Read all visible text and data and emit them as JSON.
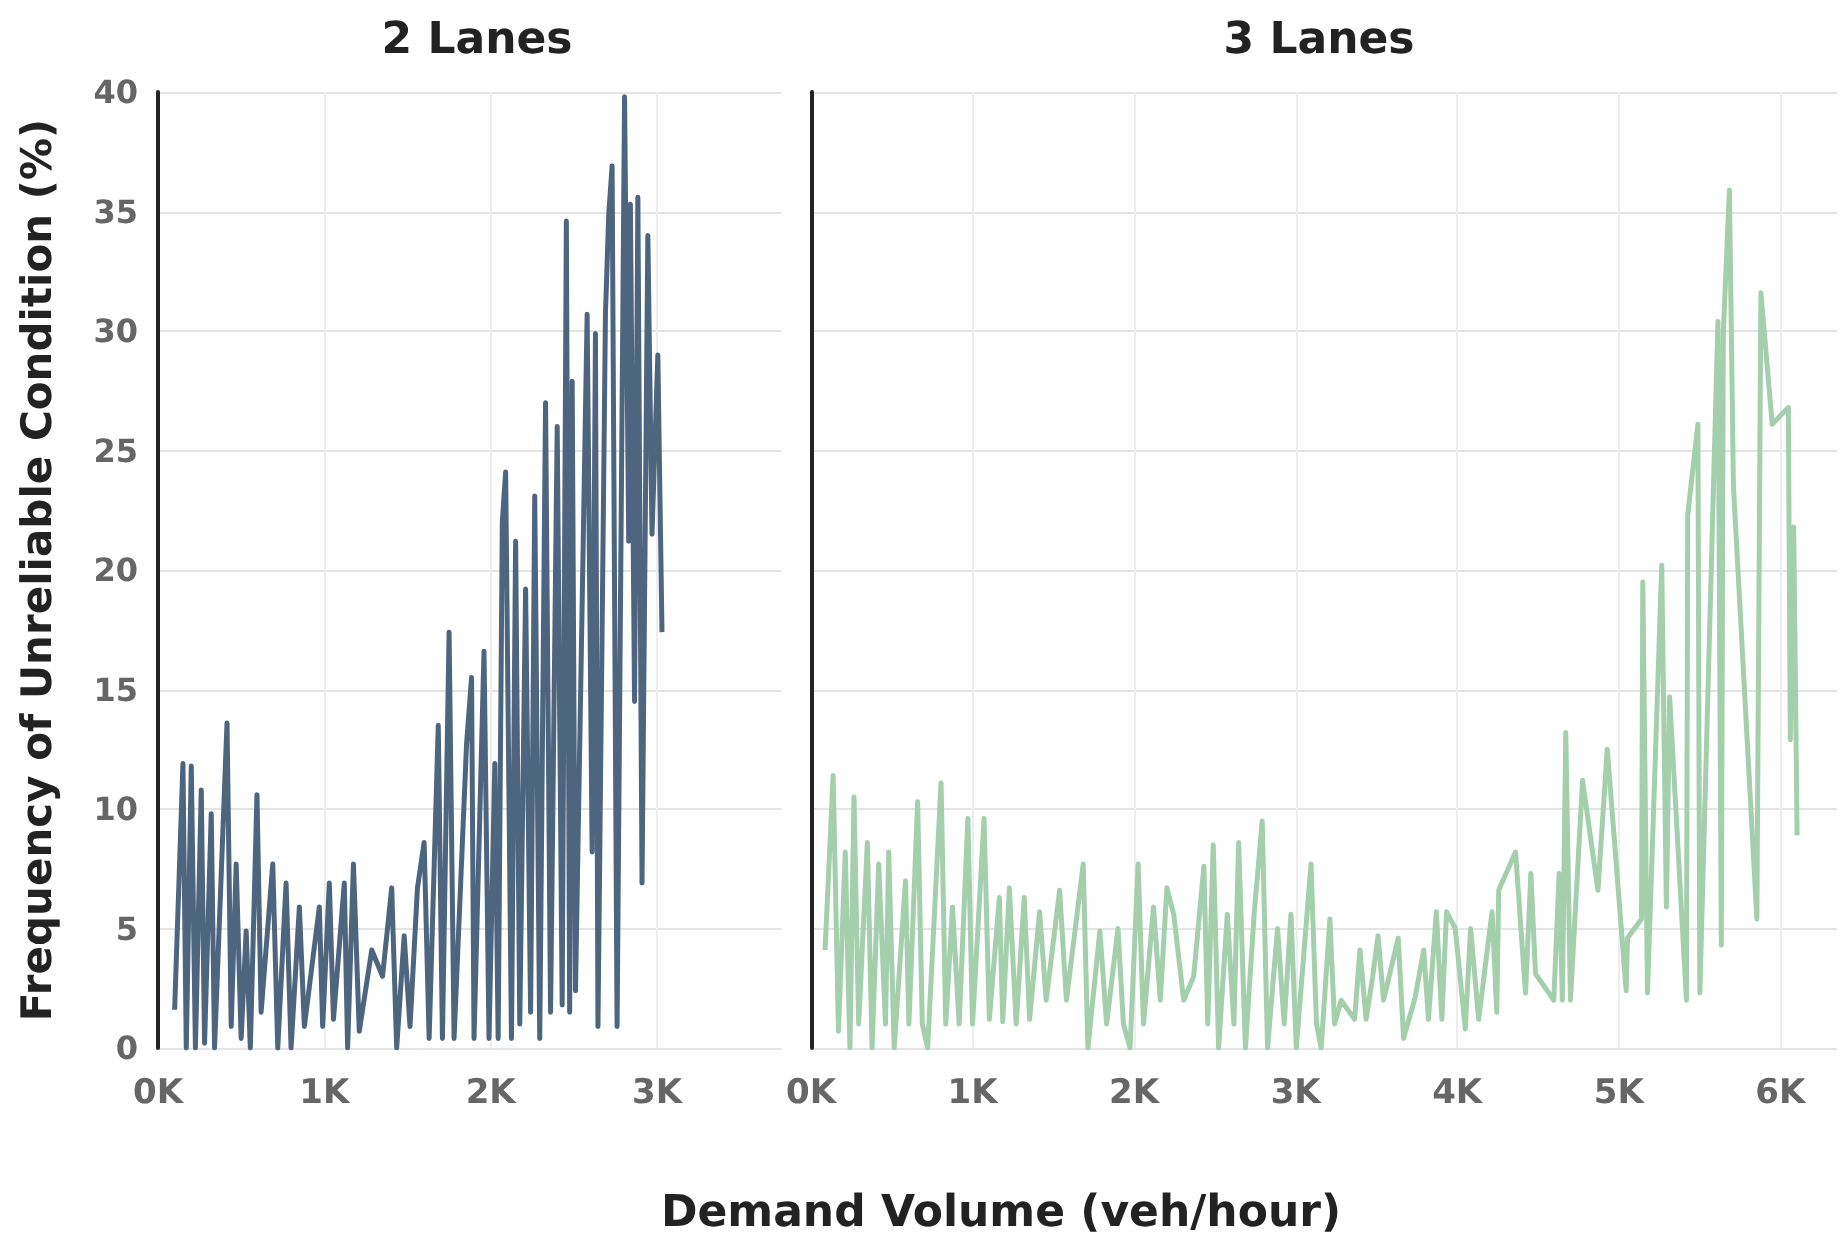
{
  "chart_data": [
    {
      "type": "line",
      "title": "2 Lanes",
      "ylabel": "Frequency of Unreliable Condition (%)",
      "xlabel": "Demand Volume (veh/hour)",
      "grid": true,
      "marker": "none",
      "line_style": "solid",
      "xlim": [
        0,
        3750
      ],
      "xticks": [
        {
          "value": 0,
          "label": "0K"
        },
        {
          "value": 1000,
          "label": "1K"
        },
        {
          "value": 2000,
          "label": "2K"
        },
        {
          "value": 3000,
          "label": "3K"
        }
      ],
      "ylim": [
        0,
        40
      ],
      "yticks": [
        0,
        5,
        10,
        15,
        20,
        25,
        30,
        35,
        40
      ],
      "series": [
        {
          "color": "#4e6580",
          "x": [
            100,
            150,
            170,
            200,
            225,
            260,
            280,
            320,
            340,
            415,
            440,
            470,
            500,
            530,
            555,
            595,
            620,
            690,
            720,
            770,
            800,
            850,
            880,
            970,
            990,
            1030,
            1055,
            1120,
            1140,
            1175,
            1210,
            1285,
            1350,
            1405,
            1435,
            1480,
            1515,
            1560,
            1600,
            1630,
            1685,
            1710,
            1750,
            1780,
            1855,
            1885,
            1900,
            1960,
            1990,
            2025,
            2045,
            2070,
            2090,
            2125,
            2150,
            2175,
            2210,
            2240,
            2265,
            2295,
            2330,
            2360,
            2400,
            2430,
            2455,
            2475,
            2490,
            2510,
            2580,
            2610,
            2630,
            2645,
            2690,
            2710,
            2730,
            2760,
            2805,
            2830,
            2840,
            2865,
            2885,
            2910,
            2945,
            2970,
            3005,
            3030
          ],
          "values": [
            1.6,
            11.9,
            0,
            11.8,
            0,
            10.8,
            0.2,
            9.8,
            0,
            13.6,
            0.9,
            7.7,
            0.4,
            4.9,
            0,
            10.6,
            1.5,
            7.7,
            0,
            6.9,
            0,
            5.9,
            0.9,
            5.9,
            0.9,
            6.9,
            1.2,
            6.9,
            0,
            7.7,
            0.7,
            4.1,
            3.0,
            6.7,
            0,
            4.7,
            0.9,
            6.7,
            8.6,
            0.4,
            13.5,
            0.4,
            17.4,
            0.4,
            12.7,
            15.5,
            0.4,
            16.6,
            0.4,
            11.9,
            0.4,
            22,
            24.1,
            0.4,
            21.2,
            1.0,
            19.2,
            1.5,
            23.1,
            0.4,
            27,
            1.5,
            26,
            1.8,
            34.6,
            1.5,
            27.9,
            2.4,
            30.7,
            8.2,
            29.9,
            0.9,
            30.7,
            34.9,
            36.9,
            0.9,
            39.8,
            21.2,
            35.3,
            14.5,
            35.6,
            6.9,
            34,
            21.5,
            29,
            17.4
          ]
        }
      ]
    },
    {
      "type": "line",
      "title": "3 Lanes",
      "grid": true,
      "marker": "none",
      "line_style": "solid",
      "tick_labels": "x",
      "xlim": [
        0,
        6350
      ],
      "xticks": [
        {
          "value": 0,
          "label": "0K"
        },
        {
          "value": 1000,
          "label": "1K"
        },
        {
          "value": 2000,
          "label": "2K"
        },
        {
          "value": 3000,
          "label": "3K"
        },
        {
          "value": 4000,
          "label": "4K"
        },
        {
          "value": 5000,
          "label": "5K"
        },
        {
          "value": 6000,
          "label": "6K"
        }
      ],
      "ylim": [
        0,
        40
      ],
      "yticks": [
        0,
        5,
        10,
        15,
        20,
        25,
        30,
        35,
        40
      ],
      "series": [
        {
          "color": "#a3cfad",
          "x": [
            87,
            137,
            170,
            212,
            241,
            266,
            295,
            349,
            378,
            419,
            461,
            481,
            515,
            585,
            606,
            660,
            689,
            722,
            805,
            834,
            876,
            917,
            971,
            1000,
            1071,
            1104,
            1166,
            1187,
            1228,
            1270,
            1320,
            1353,
            1415,
            1456,
            1539,
            1581,
            1685,
            1714,
            1788,
            1830,
            1900,
            1934,
            1975,
            2025,
            2058,
            2120,
            2162,
            2203,
            2245,
            2307,
            2369,
            2432,
            2456,
            2490,
            2523,
            2577,
            2618,
            2647,
            2689,
            2743,
            2793,
            2826,
            2888,
            2929,
            2971,
            3004,
            3095,
            3129,
            3158,
            3212,
            3241,
            3282,
            3365,
            3398,
            3436,
            3477,
            3510,
            3544,
            3635,
            3668,
            3739,
            3793,
            3822,
            3871,
            3905,
            3934,
            3988,
            4050,
            4083,
            4133,
            4216,
            4245,
            4257,
            4361,
            4423,
            4456,
            4485,
            4598,
            4631,
            4651,
            4672,
            4701,
            4776,
            4871,
            4929,
            5046,
            5054,
            5141,
            5149,
            5178,
            5266,
            5295,
            5315,
            5419,
            5427,
            5490,
            5502,
            5614,
            5635,
            5647,
            5685,
            5710,
            5855,
            5880,
            5950,
            6050,
            6062,
            6083,
            6104
          ],
          "values": [
            4.1,
            11.4,
            0.7,
            8.2,
            0,
            10.5,
            1,
            8.6,
            0,
            7.7,
            1,
            8.2,
            0,
            7,
            1,
            10.3,
            1,
            0,
            11.1,
            1,
            5.9,
            1,
            9.6,
            1,
            9.6,
            1.2,
            6.3,
            1.1,
            6.7,
            1,
            6.3,
            1.2,
            5.7,
            2,
            6.6,
            2,
            7.7,
            0,
            4.9,
            1,
            5,
            1,
            0,
            7.7,
            1,
            5.9,
            2,
            6.7,
            5.6,
            2,
            3,
            7.6,
            1,
            8.5,
            0,
            5.6,
            1,
            8.6,
            0,
            5.6,
            9.5,
            0,
            5,
            1,
            5.6,
            0,
            7.7,
            1,
            0,
            5.4,
            1,
            2,
            1.2,
            4.1,
            1.2,
            3,
            4.7,
            2,
            4.6,
            0.4,
            2.1,
            4.1,
            1.2,
            5.7,
            1.2,
            5.7,
            5,
            0.8,
            5,
            1.2,
            5.7,
            1.5,
            6.6,
            8.2,
            2.3,
            7.3,
            3.1,
            2,
            7.3,
            2,
            13.2,
            2,
            11.2,
            6.6,
            12.5,
            2.4,
            4.6,
            5.4,
            19.5,
            2.3,
            20.2,
            5.9,
            14.7,
            2,
            22.3,
            26.1,
            2.3,
            30.4,
            4.3,
            29.9,
            35.9,
            23.5,
            5.4,
            31.6,
            26.1,
            26.8,
            12.9,
            21.8,
            8.9
          ]
        }
      ]
    }
  ]
}
